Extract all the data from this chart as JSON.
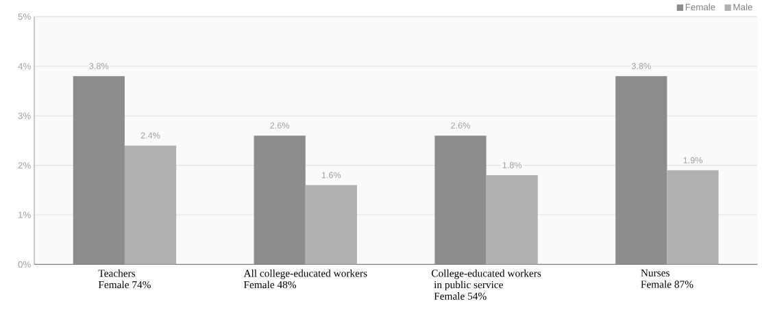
{
  "chart_data": {
    "type": "bar",
    "categories": [
      "Teachers\nFemale 74%",
      "All college-educated workers\nFemale 48%",
      "College-educated workers\n in public service\n Female 54%",
      "Nurses\nFemale 87%"
    ],
    "series": [
      {
        "name": "Female",
        "color": "#8c8c8c",
        "values": [
          3.8,
          2.6,
          2.6,
          3.8
        ]
      },
      {
        "name": "Male",
        "color": "#b0b0b0",
        "values": [
          2.4,
          1.6,
          1.8,
          1.9
        ]
      }
    ],
    "ylim": [
      0,
      5
    ],
    "yticks": [
      {
        "value": 0,
        "label": "0%"
      },
      {
        "value": 1,
        "label": "1%"
      },
      {
        "value": 2,
        "label": "2%"
      },
      {
        "value": 3,
        "label": "3%"
      },
      {
        "value": 4,
        "label": "4%"
      },
      {
        "value": 5,
        "label": "5%"
      }
    ],
    "value_labels": [
      [
        "3.8%",
        "2.6%",
        "2.6%",
        "3.8%"
      ],
      [
        "2.4%",
        "1.6%",
        "1.8%",
        "1.9%"
      ]
    ],
    "grid": "y",
    "legend": "top right"
  }
}
